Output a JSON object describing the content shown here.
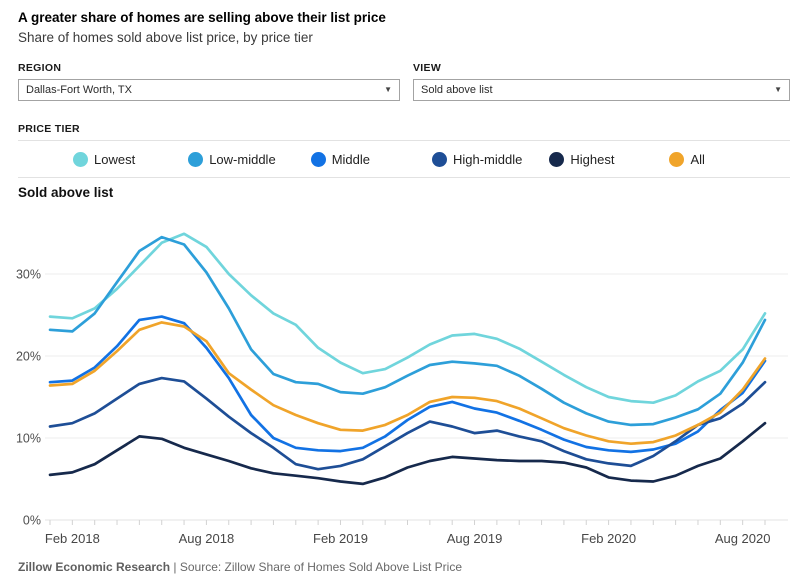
{
  "header": {
    "title": "A greater share of homes are selling above their list price",
    "subtitle": "Share of homes sold above list price, by price tier"
  },
  "controls": {
    "region": {
      "label": "REGION",
      "value": "Dallas-Fort Worth, TX",
      "dropdown_arrow": "▼"
    },
    "view": {
      "label": "VIEW",
      "value": "Sold above list",
      "dropdown_arrow": "▼"
    }
  },
  "price_tier": {
    "label": "PRICE TIER",
    "items": [
      {
        "label": "Lowest",
        "color": "#70d5dc"
      },
      {
        "label": "Low-middle",
        "color": "#2d9fd9"
      },
      {
        "label": "Middle",
        "color": "#1272e4"
      },
      {
        "label": "High-middle",
        "color": "#1e4e96"
      },
      {
        "label": "Highest",
        "color": "#16294c"
      },
      {
        "label": "All",
        "color": "#f0a42a"
      }
    ]
  },
  "chart": {
    "title": "Sold above list"
  },
  "chart_data": {
    "type": "line",
    "title": "Sold above list",
    "ylabel": "Share of homes sold above list price",
    "grid": "horizontal",
    "ylim": [
      0,
      36
    ],
    "yticks": [
      0,
      10,
      20,
      30
    ],
    "ytick_labels": [
      "0%",
      "10%",
      "20%",
      "30%"
    ],
    "x": [
      "Jan 2018",
      "Feb 2018",
      "Mar 2018",
      "Apr 2018",
      "May 2018",
      "Jun 2018",
      "Jul 2018",
      "Aug 2018",
      "Sep 2018",
      "Oct 2018",
      "Nov 2018",
      "Dec 2018",
      "Jan 2019",
      "Feb 2019",
      "Mar 2019",
      "Apr 2019",
      "May 2019",
      "Jun 2019",
      "Jul 2019",
      "Aug 2019",
      "Sep 2019",
      "Oct 2019",
      "Nov 2019",
      "Dec 2019",
      "Jan 2020",
      "Feb 2020",
      "Mar 2020",
      "Apr 2020",
      "May 2020",
      "Jun 2020",
      "Jul 2020",
      "Aug 2020",
      "Sep 2020"
    ],
    "x_tick_indices": [
      1,
      7,
      13,
      19,
      25,
      31
    ],
    "x_tick_labels": [
      "Feb 2018",
      "Aug 2018",
      "Feb 2019",
      "Aug 2019",
      "Feb 2020",
      "Aug 2020"
    ],
    "series": [
      {
        "name": "Lowest",
        "color": "#70d5dc",
        "values": [
          24.8,
          24.6,
          25.8,
          28.2,
          31.0,
          33.8,
          34.9,
          33.3,
          30.0,
          27.4,
          25.2,
          23.8,
          21.0,
          19.2,
          17.9,
          18.4,
          19.8,
          21.4,
          22.5,
          22.7,
          22.1,
          20.9,
          19.3,
          17.7,
          16.2,
          15.0,
          14.5,
          14.3,
          15.2,
          16.9,
          18.2,
          20.8,
          25.2
        ]
      },
      {
        "name": "Low-middle",
        "color": "#2d9fd9",
        "values": [
          23.2,
          23.0,
          25.2,
          29.0,
          32.8,
          34.5,
          33.6,
          30.2,
          25.8,
          20.8,
          17.8,
          16.8,
          16.6,
          15.6,
          15.4,
          16.2,
          17.6,
          18.9,
          19.3,
          19.1,
          18.8,
          17.6,
          16.0,
          14.3,
          13.0,
          12.0,
          11.6,
          11.7,
          12.5,
          13.5,
          15.4,
          19.2,
          24.4
        ]
      },
      {
        "name": "Middle",
        "color": "#1272e4",
        "values": [
          16.8,
          17.0,
          18.6,
          21.2,
          24.4,
          24.8,
          24.0,
          21.0,
          17.3,
          12.8,
          10.0,
          8.8,
          8.5,
          8.4,
          8.8,
          10.2,
          12.2,
          13.8,
          14.4,
          13.6,
          13.1,
          12.1,
          11.0,
          9.8,
          8.9,
          8.5,
          8.3,
          8.6,
          9.3,
          10.8,
          13.4,
          15.5,
          19.4
        ]
      },
      {
        "name": "High-middle",
        "color": "#1e4e96",
        "values": [
          11.4,
          11.8,
          13.0,
          14.8,
          16.6,
          17.3,
          16.9,
          14.8,
          12.6,
          10.6,
          8.8,
          6.8,
          6.2,
          6.6,
          7.4,
          9.0,
          10.6,
          12.0,
          11.4,
          10.6,
          10.9,
          10.2,
          9.6,
          8.4,
          7.4,
          6.9,
          6.6,
          7.8,
          9.6,
          11.6,
          12.4,
          14.2,
          16.8
        ]
      },
      {
        "name": "Highest",
        "color": "#16294c",
        "values": [
          5.5,
          5.8,
          6.8,
          8.5,
          10.2,
          9.9,
          8.8,
          8.0,
          7.2,
          6.3,
          5.7,
          5.4,
          5.1,
          4.7,
          4.4,
          5.2,
          6.4,
          7.2,
          7.7,
          7.5,
          7.3,
          7.2,
          7.2,
          7.0,
          6.4,
          5.2,
          4.8,
          4.7,
          5.4,
          6.6,
          7.5,
          9.6,
          11.8
        ]
      },
      {
        "name": "All",
        "color": "#f0a42a",
        "values": [
          16.4,
          16.6,
          18.2,
          20.6,
          23.2,
          24.1,
          23.6,
          21.8,
          17.9,
          15.9,
          14.0,
          12.8,
          11.8,
          11.0,
          10.9,
          11.6,
          12.8,
          14.4,
          15.0,
          14.9,
          14.5,
          13.6,
          12.4,
          11.2,
          10.3,
          9.6,
          9.3,
          9.5,
          10.3,
          11.6,
          13.1,
          15.9,
          19.7
        ]
      }
    ],
    "legend_position": "top"
  },
  "footer": {
    "left": "Zillow Economic Research",
    "separator": "|",
    "right": "Source: Zillow Share of Homes Sold Above List Price"
  }
}
